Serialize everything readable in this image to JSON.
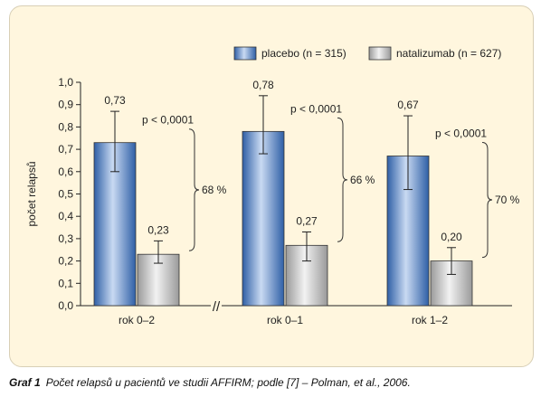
{
  "caption": {
    "label": "Graf 1",
    "text": "Počet relapsů u pacientů ve studii AFFIRM; podle [7] – Polman, et al., 2006."
  },
  "chart_data": {
    "type": "bar",
    "title": "",
    "xlabel": "",
    "ylabel": "počet relapsů",
    "ylim": [
      0,
      1.0
    ],
    "yticks": [
      "0,0",
      "0,1",
      "0,2",
      "0,3",
      "0,4",
      "0,5",
      "0,6",
      "0,7",
      "0,8",
      "0,9",
      "1,0"
    ],
    "categories": [
      "rok 0–2",
      "rok 0–1",
      "rok 1–2"
    ],
    "series": [
      {
        "name": "placebo (n = 315)",
        "values": [
          0.73,
          0.78,
          0.67
        ],
        "labels": [
          "0,73",
          "0,78",
          "0,67"
        ],
        "error_low": [
          0.6,
          0.68,
          0.52
        ],
        "error_high": [
          0.87,
          0.94,
          0.85
        ]
      },
      {
        "name": "natalizumab (n = 627)",
        "values": [
          0.23,
          0.27,
          0.2
        ],
        "labels": [
          "0,23",
          "0,27",
          "0,20"
        ],
        "error_low": [
          0.19,
          0.2,
          0.14
        ],
        "error_high": [
          0.29,
          0.33,
          0.26
        ]
      }
    ],
    "annotations": {
      "p_values": [
        "p < 0,0001",
        "p < 0,0001",
        "p < 0,0001"
      ],
      "reductions": [
        "68 %",
        "66 %",
        "70 %"
      ]
    },
    "axis_break": "//",
    "legend_position": "top-right",
    "grid": false,
    "colors": {
      "placebo": "#4a78b8",
      "natalizumab": "#b8b8b8",
      "background": "#fff6de"
    }
  }
}
